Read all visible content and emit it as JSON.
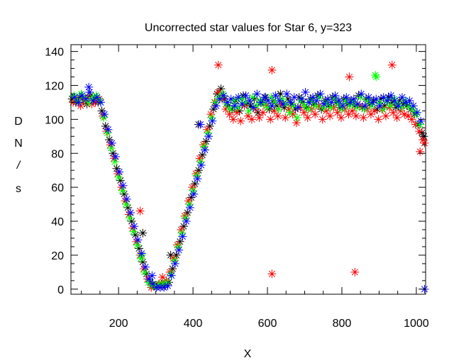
{
  "chart_data": {
    "type": "scatter",
    "title": "Uncorrected star values for Star 6, y=323",
    "xlabel": "X",
    "ylabel_chars": [
      "D",
      "N",
      "/",
      "s"
    ],
    "xlim": [
      72,
      1025
    ],
    "ylim": [
      -3,
      144
    ],
    "x_major_ticks": [
      200,
      400,
      600,
      800,
      1000
    ],
    "x_minor_step": 50,
    "y_major_ticks": [
      0,
      20,
      40,
      60,
      80,
      100,
      120,
      140
    ],
    "y_minor_step": 5,
    "grid": false,
    "marker": "asterisk",
    "series": [
      {
        "name": "black",
        "color": "#000000",
        "x": [
          75,
          85,
          95,
          105,
          115,
          125,
          135,
          145,
          155,
          165,
          175,
          185,
          195,
          205,
          215,
          225,
          235,
          245,
          255,
          265,
          275,
          285,
          295,
          305,
          315,
          325,
          335,
          345,
          355,
          365,
          375,
          385,
          395,
          405,
          415,
          425,
          435,
          445,
          455,
          465,
          475,
          485,
          495,
          505,
          515,
          525,
          535,
          545,
          555,
          565,
          575,
          585,
          595,
          605,
          615,
          625,
          635,
          645,
          655,
          665,
          675,
          685,
          695,
          705,
          715,
          725,
          735,
          745,
          755,
          765,
          775,
          785,
          795,
          805,
          815,
          825,
          835,
          845,
          855,
          865,
          875,
          885,
          895,
          905,
          915,
          925,
          935,
          945,
          955,
          965,
          975,
          985,
          995,
          1005,
          1015,
          1020,
          265,
          340,
          415
        ],
        "y": [
          112,
          110,
          113,
          111,
          109,
          114,
          112,
          110,
          105,
          96,
          88,
          80,
          71,
          64,
          56,
          48,
          40,
          32,
          24,
          16,
          9,
          4,
          2,
          2,
          3,
          2,
          4,
          12,
          20,
          28,
          37,
          45,
          54,
          62,
          70,
          79,
          87,
          96,
          106,
          115,
          118,
          112,
          108,
          106,
          111,
          105,
          114,
          109,
          108,
          112,
          104,
          110,
          113,
          106,
          111,
          108,
          115,
          107,
          112,
          109,
          106,
          113,
          110,
          107,
          112,
          109,
          114,
          106,
          111,
          108,
          113,
          110,
          107,
          112,
          109,
          111,
          108,
          114,
          107,
          112,
          109,
          111,
          106,
          112,
          108,
          113,
          110,
          107,
          111,
          109,
          108,
          106,
          103,
          97,
          92,
          90,
          33,
          20,
          97
        ]
      },
      {
        "name": "red",
        "color": "#ff0000",
        "x": [
          78,
          88,
          98,
          108,
          118,
          128,
          138,
          148,
          158,
          168,
          178,
          188,
          198,
          208,
          218,
          228,
          238,
          248,
          258,
          268,
          278,
          288,
          298,
          308,
          318,
          328,
          338,
          348,
          358,
          368,
          378,
          388,
          398,
          408,
          418,
          428,
          438,
          448,
          458,
          468,
          478,
          488,
          498,
          508,
          518,
          528,
          538,
          548,
          558,
          568,
          578,
          588,
          598,
          608,
          618,
          628,
          638,
          648,
          658,
          668,
          678,
          688,
          698,
          708,
          718,
          728,
          738,
          748,
          758,
          768,
          778,
          788,
          798,
          808,
          818,
          828,
          838,
          848,
          858,
          868,
          878,
          888,
          898,
          908,
          918,
          928,
          938,
          948,
          958,
          968,
          978,
          988,
          998,
          1008,
          1018,
          1022,
          612,
          835,
          935,
          468,
          612,
          820,
          1010,
          258,
          318
        ],
        "y": [
          110,
          112,
          108,
          111,
          113,
          109,
          110,
          112,
          102,
          93,
          85,
          77,
          68,
          60,
          52,
          44,
          36,
          28,
          20,
          12,
          6,
          1,
          2,
          3,
          2,
          5,
          10,
          18,
          26,
          35,
          43,
          52,
          60,
          68,
          77,
          85,
          94,
          103,
          110,
          116,
          112,
          106,
          103,
          100,
          104,
          99,
          108,
          102,
          100,
          106,
          101,
          104,
          108,
          100,
          105,
          102,
          109,
          101,
          106,
          103,
          98,
          107,
          104,
          101,
          106,
          103,
          108,
          100,
          105,
          102,
          107,
          104,
          101,
          106,
          103,
          105,
          102,
          108,
          101,
          106,
          103,
          105,
          100,
          106,
          102,
          107,
          104,
          101,
          105,
          103,
          102,
          100,
          97,
          93,
          88,
          86,
          9,
          10,
          132,
          132,
          129,
          125,
          81,
          46,
          7
        ]
      },
      {
        "name": "green",
        "color": "#00ff00",
        "x": [
          80,
          90,
          100,
          110,
          120,
          130,
          140,
          150,
          160,
          170,
          180,
          190,
          200,
          210,
          220,
          230,
          240,
          250,
          260,
          270,
          280,
          290,
          300,
          310,
          320,
          330,
          340,
          350,
          360,
          370,
          380,
          390,
          400,
          410,
          420,
          430,
          440,
          450,
          460,
          470,
          480,
          490,
          500,
          510,
          520,
          530,
          540,
          550,
          560,
          570,
          580,
          590,
          600,
          610,
          620,
          630,
          640,
          650,
          660,
          670,
          680,
          690,
          700,
          710,
          720,
          730,
          740,
          750,
          760,
          770,
          780,
          790,
          800,
          810,
          820,
          830,
          840,
          850,
          860,
          870,
          880,
          890,
          900,
          910,
          920,
          930,
          940,
          950,
          960,
          970,
          980,
          990,
          1000,
          1010,
          892,
          262
        ],
        "y": [
          114,
          111,
          115,
          112,
          110,
          113,
          114,
          111,
          101,
          92,
          83,
          75,
          66,
          58,
          50,
          42,
          34,
          26,
          18,
          10,
          4,
          2,
          2,
          3,
          3,
          4,
          9,
          17,
          25,
          33,
          42,
          50,
          58,
          67,
          75,
          84,
          92,
          101,
          110,
          113,
          115,
          109,
          106,
          111,
          107,
          112,
          110,
          105,
          113,
          108,
          111,
          109,
          107,
          113,
          110,
          106,
          112,
          109,
          104,
          108,
          101,
          111,
          108,
          106,
          111,
          108,
          113,
          107,
          110,
          107,
          112,
          109,
          106,
          111,
          108,
          110,
          107,
          113,
          106,
          111,
          108,
          126,
          110,
          106,
          111,
          108,
          112,
          109,
          107,
          111,
          108,
          106,
          103,
          97,
          125,
          20
        ]
      },
      {
        "name": "blue",
        "color": "#0000ff",
        "x": [
          82,
          92,
          102,
          112,
          122,
          132,
          142,
          152,
          162,
          172,
          182,
          192,
          202,
          212,
          222,
          232,
          242,
          252,
          262,
          272,
          282,
          292,
          302,
          312,
          322,
          332,
          342,
          352,
          362,
          372,
          382,
          392,
          402,
          412,
          422,
          432,
          442,
          452,
          462,
          472,
          482,
          492,
          502,
          512,
          522,
          532,
          542,
          552,
          562,
          572,
          582,
          592,
          602,
          612,
          622,
          632,
          642,
          652,
          662,
          672,
          682,
          692,
          702,
          712,
          722,
          732,
          742,
          752,
          762,
          772,
          782,
          792,
          802,
          812,
          822,
          832,
          842,
          852,
          862,
          872,
          882,
          892,
          902,
          912,
          922,
          932,
          942,
          952,
          962,
          972,
          982,
          992,
          1002,
          1012,
          1022,
          120,
          420,
          290
        ],
        "y": [
          113,
          110,
          114,
          112,
          116,
          111,
          113,
          110,
          103,
          94,
          86,
          78,
          69,
          61,
          53,
          45,
          37,
          29,
          21,
          13,
          6,
          3,
          1,
          1,
          1,
          2,
          8,
          15,
          23,
          31,
          40,
          48,
          56,
          65,
          73,
          82,
          90,
          99,
          108,
          112,
          114,
          110,
          112,
          108,
          113,
          109,
          114,
          111,
          107,
          115,
          110,
          113,
          111,
          108,
          114,
          111,
          109,
          115,
          110,
          113,
          107,
          112,
          116,
          110,
          113,
          111,
          115,
          109,
          112,
          110,
          114,
          111,
          108,
          113,
          110,
          112,
          109,
          115,
          108,
          113,
          110,
          112,
          108,
          113,
          111,
          114,
          111,
          108,
          113,
          110,
          111,
          108,
          104,
          99,
          0,
          119,
          97,
          8
        ]
      }
    ]
  }
}
